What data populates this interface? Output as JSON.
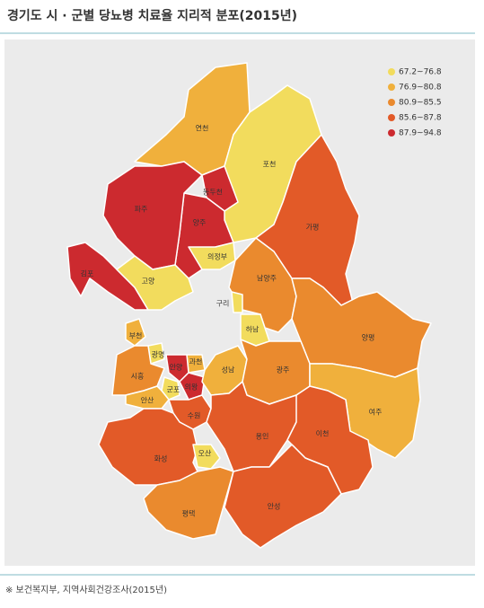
{
  "title": "경기도 시 · 군별 당뇨병 치료율 지리적 분포(2015년)",
  "legend": [
    {
      "label": "67.2~76.8",
      "color": "#f2dc5d"
    },
    {
      "label": "76.9~80.8",
      "color": "#f0b03c"
    },
    {
      "label": "80.9~85.5",
      "color": "#ea8a2e"
    },
    {
      "label": "85.6~87.8",
      "color": "#e25a28"
    },
    {
      "label": "87.9~94.8",
      "color": "#cc2a2f"
    }
  ],
  "regions": [
    {
      "name": "연천",
      "color": "#f0b03c"
    },
    {
      "name": "포천",
      "color": "#f2dc5d"
    },
    {
      "name": "동두천",
      "color": "#cc2a2f"
    },
    {
      "name": "양주",
      "color": "#cc2a2f"
    },
    {
      "name": "파주",
      "color": "#cc2a2f"
    },
    {
      "name": "김포",
      "color": "#cc2a2f"
    },
    {
      "name": "고양",
      "color": "#f2dc5d"
    },
    {
      "name": "의정부",
      "color": "#f2dc5d"
    },
    {
      "name": "가평",
      "color": "#e25a28"
    },
    {
      "name": "남양주",
      "color": "#ea8a2e"
    },
    {
      "name": "구리",
      "color": "#f2dc5d"
    },
    {
      "name": "하남",
      "color": "#f2dc5d"
    },
    {
      "name": "양평",
      "color": "#ea8a2e"
    },
    {
      "name": "부천",
      "color": "#f0b03c"
    },
    {
      "name": "광명",
      "color": "#f2dc5d"
    },
    {
      "name": "과천",
      "color": "#f0b03c"
    },
    {
      "name": "안양",
      "color": "#cc2a2f"
    },
    {
      "name": "시흥",
      "color": "#ea8a2e"
    },
    {
      "name": "군포",
      "color": "#f2dc5d"
    },
    {
      "name": "의왕",
      "color": "#cc2a2f"
    },
    {
      "name": "성남",
      "color": "#f0b03c"
    },
    {
      "name": "광주",
      "color": "#ea8a2e"
    },
    {
      "name": "안산",
      "color": "#f0b03c"
    },
    {
      "name": "수원",
      "color": "#e25a28"
    },
    {
      "name": "여주",
      "color": "#f0b03c"
    },
    {
      "name": "용인",
      "color": "#e25a28"
    },
    {
      "name": "이천",
      "color": "#e25a28"
    },
    {
      "name": "화성",
      "color": "#e25a28"
    },
    {
      "name": "오산",
      "color": "#f2dc5d"
    },
    {
      "name": "평택",
      "color": "#ea8a2e"
    },
    {
      "name": "안성",
      "color": "#e25a28"
    }
  ],
  "source": "※ 보건복지부, 지역사회건강조사(2015년)"
}
